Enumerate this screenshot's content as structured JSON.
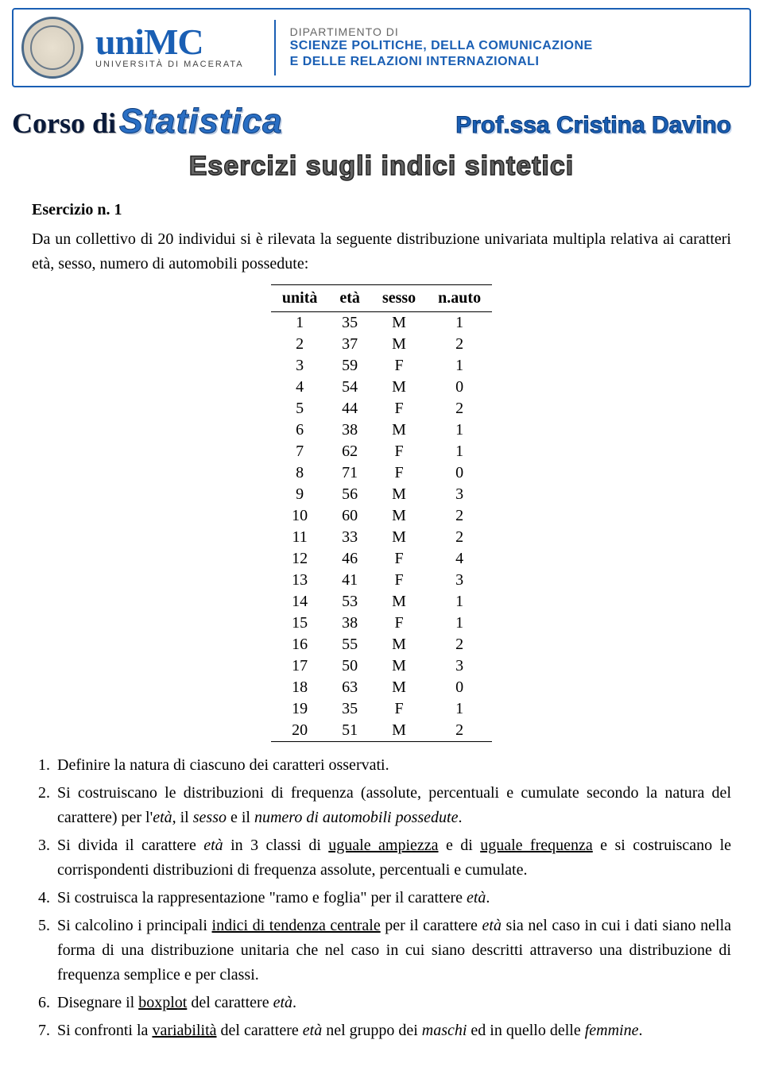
{
  "header": {
    "logo_main": "uniMC",
    "logo_sub": "UNIVERSITÀ DI MACERATA",
    "dept_line1": "DIPARTIMENTO DI",
    "dept_line2a": "SCIENZE POLITICHE, DELLA COMUNICAZIONE",
    "dept_line2b": "E DELLE RELAZIONI INTERNAZIONALI"
  },
  "title_row": {
    "corso_label": "Corso di",
    "statistica": "Statistica",
    "prof": "Prof.ssa Cristina Davino"
  },
  "subtitle": "Esercizi sugli indici sintetici",
  "exercise": {
    "title": "Esercizio n. 1",
    "intro": "Da un collettivo di 20 individui si è rilevata la seguente distribuzione univariata multipla relativa ai caratteri età, sesso, numero di automobili possedute:"
  },
  "table": {
    "headers": [
      "unità",
      "età",
      "sesso",
      "n.auto"
    ],
    "rows": [
      [
        "1",
        "35",
        "M",
        "1"
      ],
      [
        "2",
        "37",
        "M",
        "2"
      ],
      [
        "3",
        "59",
        "F",
        "1"
      ],
      [
        "4",
        "54",
        "M",
        "0"
      ],
      [
        "5",
        "44",
        "F",
        "2"
      ],
      [
        "6",
        "38",
        "M",
        "1"
      ],
      [
        "7",
        "62",
        "F",
        "1"
      ],
      [
        "8",
        "71",
        "F",
        "0"
      ],
      [
        "9",
        "56",
        "M",
        "3"
      ],
      [
        "10",
        "60",
        "M",
        "2"
      ],
      [
        "11",
        "33",
        "M",
        "2"
      ],
      [
        "12",
        "46",
        "F",
        "4"
      ],
      [
        "13",
        "41",
        "F",
        "3"
      ],
      [
        "14",
        "53",
        "M",
        "1"
      ],
      [
        "15",
        "38",
        "F",
        "1"
      ],
      [
        "16",
        "55",
        "M",
        "2"
      ],
      [
        "17",
        "50",
        "M",
        "3"
      ],
      [
        "18",
        "63",
        "M",
        "0"
      ],
      [
        "19",
        "35",
        "F",
        "1"
      ],
      [
        "20",
        "51",
        "M",
        "2"
      ]
    ]
  },
  "questions": {
    "q1": "Definire la natura di ciascuno dei caratteri osservati.",
    "q2_a": "Si costruiscano le distribuzioni di frequenza (assolute, percentuali e cumulate secondo la natura del carattere) per l'",
    "q2_b": "età",
    "q2_c": ", il ",
    "q2_d": "sesso",
    "q2_e": " e il ",
    "q2_f": "numero di automobili possedute",
    "q2_g": ".",
    "q3_a": "Si divida il carattere ",
    "q3_b": "età",
    "q3_c": " in 3 classi di ",
    "q3_d": "uguale ampiezza",
    "q3_e": " e di ",
    "q3_f": "uguale frequenza",
    "q3_g": " e si costruiscano le corrispondenti distribuzioni di frequenza assolute, percentuali e cumulate.",
    "q4_a": "Si costruisca la rappresentazione \"ramo e foglia\" per il carattere ",
    "q4_b": "età",
    "q4_c": ".",
    "q5_a": "Si calcolino i principali ",
    "q5_b": "indici di tendenza centrale",
    "q5_c": " per il carattere ",
    "q5_d": "età",
    "q5_e": " sia nel caso in cui i dati siano nella forma di una distribuzione unitaria che nel caso in cui siano descritti attraverso una distribuzione di frequenza semplice e per classi.",
    "q6_a": "Disegnare il ",
    "q6_b": "boxplot",
    "q6_c": " del carattere ",
    "q6_d": "età",
    "q6_e": ".",
    "q7_a": "Si confronti la ",
    "q7_b": "variabilità",
    "q7_c": " del carattere ",
    "q7_d": "età",
    "q7_e": " nel gruppo dei ",
    "q7_f": "maschi",
    "q7_g": " ed in quello delle ",
    "q7_h": "femmine",
    "q7_i": "."
  }
}
